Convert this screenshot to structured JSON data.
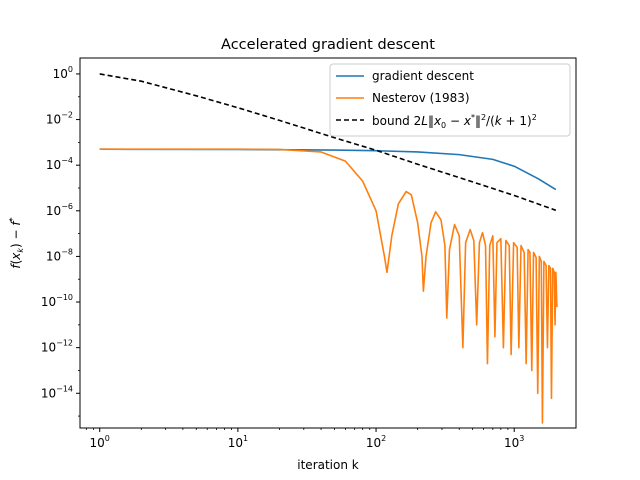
{
  "chart_data": {
    "type": "line",
    "title": "Accelerated gradient descent",
    "xlabel": "iteration k",
    "ylabel": "f(x_k) − f*",
    "xscale": "log",
    "yscale": "log",
    "xlim": [
      0.72,
      2800
    ],
    "ylim": [
      3e-16,
      5
    ],
    "xticks": [
      {
        "value": 1,
        "base": "10",
        "exp": "0"
      },
      {
        "value": 10,
        "base": "10",
        "exp": "1"
      },
      {
        "value": 100,
        "base": "10",
        "exp": "2"
      },
      {
        "value": 1000,
        "base": "10",
        "exp": "3"
      }
    ],
    "yticks": [
      {
        "value": 1,
        "base": "10",
        "exp": "0"
      },
      {
        "value": 0.01,
        "base": "10",
        "exp": "−2"
      },
      {
        "value": 0.0001,
        "base": "10",
        "exp": "−4"
      },
      {
        "value": 1e-06,
        "base": "10",
        "exp": "−6"
      },
      {
        "value": 1e-08,
        "base": "10",
        "exp": "−8"
      },
      {
        "value": 1e-10,
        "base": "10",
        "exp": "−10"
      },
      {
        "value": 1e-12,
        "base": "10",
        "exp": "−12"
      },
      {
        "value": 1e-14,
        "base": "10",
        "exp": "−14"
      }
    ],
    "grid": false,
    "legend_position": "top-right",
    "series": [
      {
        "name": "gradient descent",
        "color": "#1f77b4",
        "style": "solid",
        "points": [
          [
            1,
            0.0005
          ],
          [
            10,
            0.00049
          ],
          [
            50,
            0.00046
          ],
          [
            100,
            0.00043
          ],
          [
            200,
            0.00038
          ],
          [
            400,
            0.00029
          ],
          [
            700,
            0.00018
          ],
          [
            1000,
            9e-05
          ],
          [
            1500,
            2.5e-05
          ],
          [
            2000,
            8.5e-06
          ]
        ]
      },
      {
        "name": "Nesterov (1983)",
        "color": "#ff7f0e",
        "style": "solid",
        "points": [
          [
            1,
            0.0005
          ],
          [
            10,
            0.0005
          ],
          [
            20,
            0.00049
          ],
          [
            40,
            0.00038
          ],
          [
            60,
            0.00015
          ],
          [
            80,
            2e-05
          ],
          [
            100,
            1e-06
          ],
          [
            115,
            1e-08
          ],
          [
            120,
            2e-09
          ],
          [
            130,
            8e-08
          ],
          [
            145,
            2e-06
          ],
          [
            165,
            7e-06
          ],
          [
            180,
            5e-06
          ],
          [
            200,
            3e-07
          ],
          [
            215,
            1e-08
          ],
          [
            220,
            3e-10
          ],
          [
            230,
            1e-08
          ],
          [
            250,
            3e-07
          ],
          [
            270,
            9e-07
          ],
          [
            295,
            4e-07
          ],
          [
            315,
            3e-08
          ],
          [
            325,
            2e-11
          ],
          [
            340,
            2e-08
          ],
          [
            370,
            2.5e-07
          ],
          [
            400,
            8e-08
          ],
          [
            425,
            1e-12
          ],
          [
            445,
            4e-08
          ],
          [
            480,
            1.5e-07
          ],
          [
            510,
            5e-08
          ],
          [
            535,
            1e-11
          ],
          [
            560,
            4e-08
          ],
          [
            590,
            1.1e-07
          ],
          [
            620,
            3e-08
          ],
          [
            640,
            2e-13
          ],
          [
            665,
            3e-08
          ],
          [
            700,
            8e-08
          ],
          [
            725,
            3e-12
          ],
          [
            750,
            4e-08
          ],
          [
            800,
            6e-08
          ],
          [
            835,
            1e-12
          ],
          [
            870,
            5e-08
          ],
          [
            920,
            3e-08
          ],
          [
            950,
            5e-13
          ],
          [
            990,
            4e-08
          ],
          [
            1050,
            2.5e-08
          ],
          [
            1080,
            1e-12
          ],
          [
            1120,
            3e-08
          ],
          [
            1180,
            1.5e-08
          ],
          [
            1220,
            2e-13
          ],
          [
            1260,
            2e-08
          ],
          [
            1300,
            1.5e-08
          ],
          [
            1340,
            1e-13
          ],
          [
            1380,
            1.5e-08
          ],
          [
            1440,
            9e-09
          ],
          [
            1480,
            1e-14
          ],
          [
            1520,
            1e-08
          ],
          [
            1570,
            6e-09
          ],
          [
            1600,
            5e-16
          ],
          [
            1640,
            6e-09
          ],
          [
            1700,
            4e-09
          ],
          [
            1740,
            1e-12
          ],
          [
            1780,
            4e-09
          ],
          [
            1830,
            3e-09
          ],
          [
            1860,
            6e-15
          ],
          [
            1900,
            3e-09
          ],
          [
            1950,
            2e-09
          ],
          [
            1975,
            1e-11
          ],
          [
            2000,
            2e-09
          ],
          [
            2010,
            1e-09
          ],
          [
            2030,
            1e-10
          ],
          [
            2040,
            6e-11
          ]
        ]
      },
      {
        "name": "bound",
        "legend_formula": {
          "prefix": "bound ",
          "mid1": "2",
          "L": "L",
          "norm_open": "‖",
          "x": "x",
          "sub0": "0",
          "minus": " − ",
          "xs": "x",
          "star": "*",
          "norm_close": "‖",
          "sq": "2",
          "div": "/(",
          "k": "k",
          "plus": " + 1)",
          "sq2": "2"
        },
        "color": "#000000",
        "style": "dashed",
        "points": [
          [
            1,
            1
          ],
          [
            2,
            0.48
          ],
          [
            5,
            0.11
          ],
          [
            10,
            0.033
          ],
          [
            20,
            0.0092
          ],
          [
            50,
            0.0016
          ],
          [
            100,
            0.00045
          ],
          [
            200,
            0.00011
          ],
          [
            500,
            1.85e-05
          ],
          [
            1000,
            4.7e-06
          ],
          [
            2000,
            1.05e-06
          ]
        ]
      }
    ]
  }
}
